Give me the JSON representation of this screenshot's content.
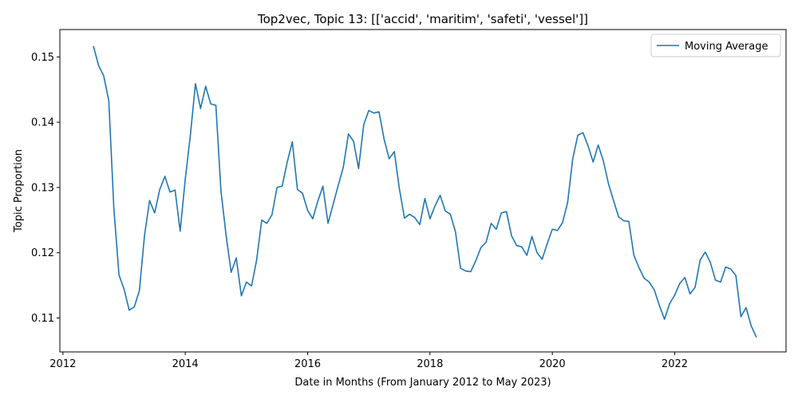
{
  "chart_data": {
    "type": "line",
    "title": "Top2vec, Topic 13: [['accid', 'maritim', 'safeti', 'vessel']]",
    "xlabel": "Date in Months (From January 2012 to May 2023)",
    "ylabel": "Topic Proportion",
    "xlim": [
      2011.95,
      2023.82
    ],
    "ylim": [
      0.1048,
      0.1542
    ],
    "x_ticks": [
      2012,
      2014,
      2016,
      2018,
      2020,
      2022
    ],
    "x_tick_labels": [
      "2012",
      "2014",
      "2016",
      "2018",
      "2020",
      "2022"
    ],
    "y_ticks": [
      0.11,
      0.12,
      0.13,
      0.14,
      0.15
    ],
    "y_tick_labels": [
      "0.11",
      "0.12",
      "0.13",
      "0.14",
      "0.15"
    ],
    "grid": false,
    "legend_position": "top-right",
    "series": [
      {
        "name": "Moving Average",
        "color": "#1f77b4",
        "start": "2012-07",
        "values": [
          0.1516,
          0.1487,
          0.1471,
          0.1433,
          0.1267,
          0.1166,
          0.1144,
          0.1112,
          0.1117,
          0.1142,
          0.1226,
          0.128,
          0.1261,
          0.1297,
          0.1317,
          0.1293,
          0.1296,
          0.1233,
          0.1313,
          0.138,
          0.1459,
          0.1421,
          0.1455,
          0.1428,
          0.1426,
          0.1295,
          0.1227,
          0.117,
          0.1192,
          0.1134,
          0.1155,
          0.1149,
          0.1189,
          0.125,
          0.1245,
          0.1258,
          0.13,
          0.1302,
          0.1339,
          0.137,
          0.1297,
          0.1291,
          0.1265,
          0.1252,
          0.1279,
          0.1302,
          0.1245,
          0.1274,
          0.1303,
          0.1331,
          0.1382,
          0.1371,
          0.1329,
          0.1396,
          0.1418,
          0.1414,
          0.1416,
          0.1374,
          0.1344,
          0.1355,
          0.1298,
          0.1253,
          0.1259,
          0.1254,
          0.1243,
          0.1283,
          0.1252,
          0.1272,
          0.1288,
          0.1264,
          0.1259,
          0.1232,
          0.1176,
          0.1172,
          0.1171,
          0.1188,
          0.1208,
          0.1216,
          0.1245,
          0.1236,
          0.1261,
          0.1263,
          0.1226,
          0.1211,
          0.1209,
          0.1196,
          0.1225,
          0.12,
          0.119,
          0.1214,
          0.1236,
          0.1234,
          0.1246,
          0.1277,
          0.1344,
          0.138,
          0.1384,
          0.1364,
          0.1339,
          0.1365,
          0.1341,
          0.1306,
          0.128,
          0.1255,
          0.1249,
          0.1248,
          0.1196,
          0.1177,
          0.1161,
          0.1155,
          0.1143,
          0.1119,
          0.1098,
          0.1122,
          0.1135,
          0.1153,
          0.1162,
          0.1137,
          0.1147,
          0.1189,
          0.1201,
          0.1185,
          0.1158,
          0.1155,
          0.1178,
          0.1175,
          0.1165,
          0.1102,
          0.1116,
          0.1088,
          0.1071
        ]
      }
    ]
  }
}
